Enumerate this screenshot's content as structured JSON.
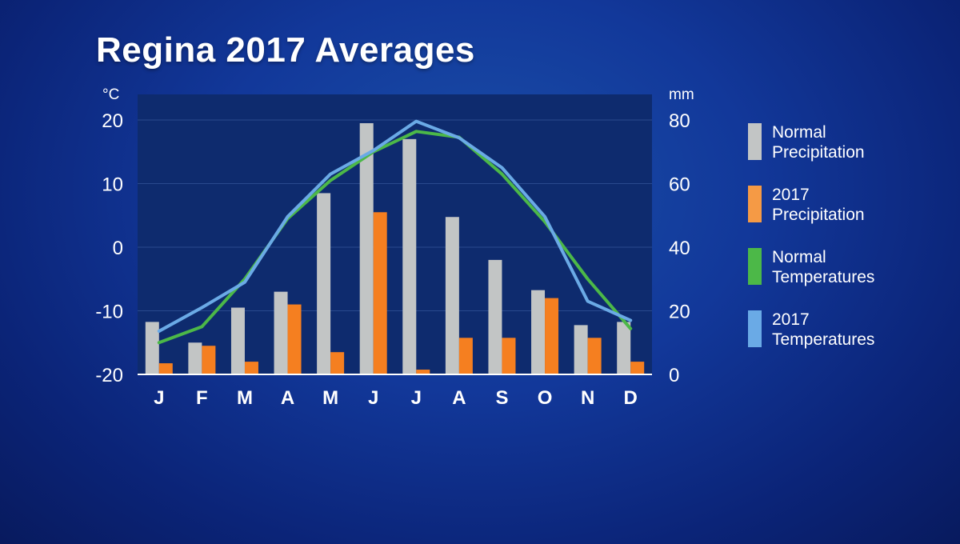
{
  "title": "Regina 2017 Averages",
  "chart_data": {
    "type": "bar",
    "title": "Regina 2017 Averages",
    "categories": [
      "J",
      "F",
      "M",
      "A",
      "M",
      "J",
      "J",
      "A",
      "S",
      "O",
      "N",
      "D"
    ],
    "y_left": {
      "unit": "°C",
      "ticks": [
        "20",
        "10",
        "0",
        "-10",
        "-20"
      ],
      "range": [
        -20,
        20
      ]
    },
    "y_right": {
      "unit": "mm",
      "ticks": [
        "80",
        "60",
        "40",
        "20",
        "0"
      ],
      "range": [
        0,
        80
      ]
    },
    "bar_series": [
      {
        "legend": [
          "Normal",
          "Precipitation"
        ],
        "color": "#c2c5c5",
        "axis": "right",
        "values": [
          16.5,
          10,
          21,
          26,
          57,
          79,
          74,
          49.5,
          36,
          26.5,
          15.5,
          16.5
        ]
      },
      {
        "legend": [
          "2017",
          "Precipitation"
        ],
        "color": "#f57f20",
        "axis": "right",
        "values": [
          3.5,
          9,
          4,
          22,
          7,
          51,
          1.5,
          11.5,
          11.5,
          24,
          11.5,
          4
        ]
      }
    ],
    "line_series": [
      {
        "legend": [
          "Normal",
          "Temperatures"
        ],
        "color": "#4cb848",
        "axis": "left",
        "values": [
          -15,
          -12.5,
          -5,
          4.5,
          10.5,
          15,
          18.2,
          17.3,
          11.5,
          4,
          -5,
          -12.8
        ]
      },
      {
        "legend": [
          "2017",
          "Temperatures"
        ],
        "color": "#6aaae6",
        "axis": "left",
        "values": [
          -13.2,
          -9.5,
          -5.5,
          4.8,
          11.5,
          15.2,
          19.8,
          17.2,
          12.5,
          4.8,
          -8.5,
          -11.5
        ]
      }
    ],
    "grid": true,
    "legend_position": "right"
  }
}
